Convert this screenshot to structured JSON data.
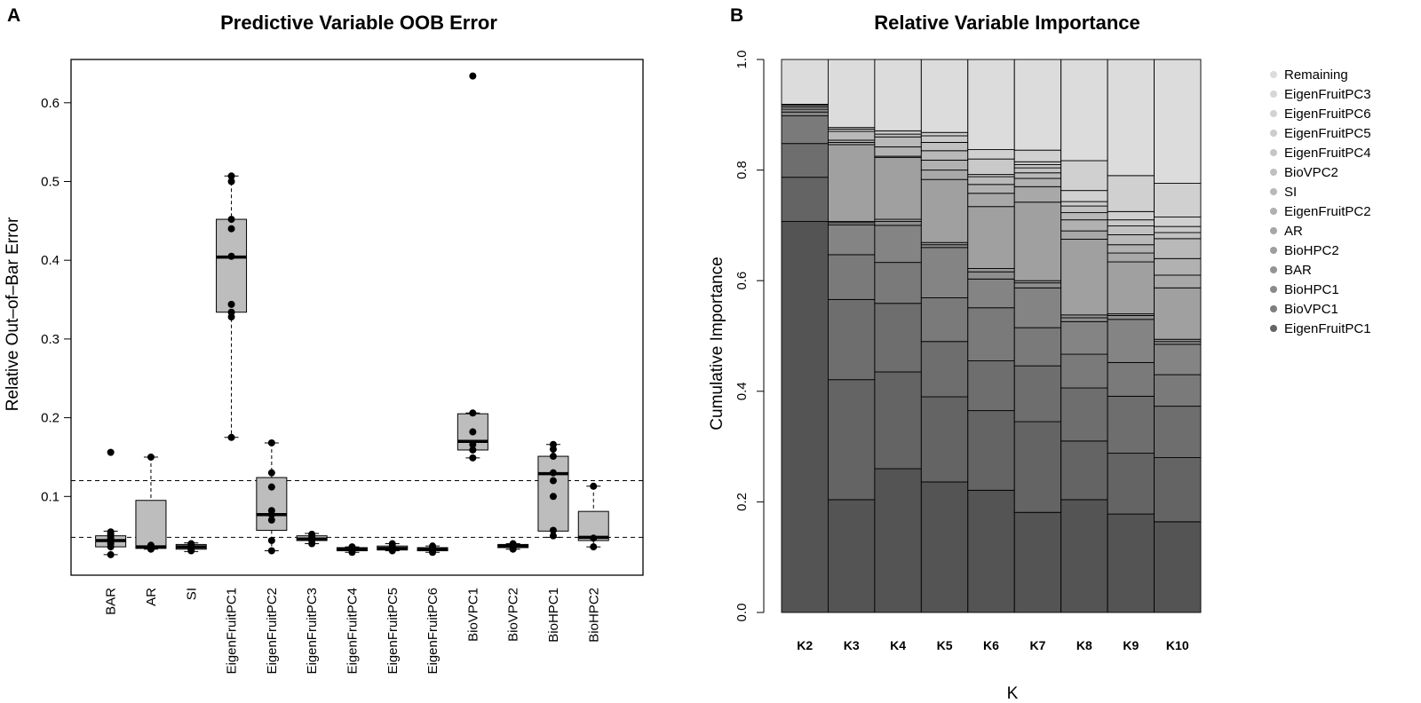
{
  "panel_a_letter": "A",
  "panel_b_letter": "B",
  "chart_data": [
    {
      "type": "box",
      "title": "Predictive Variable OOB Error",
      "ylabel": "Relative Out–of–Bar Error",
      "xlabel": "",
      "ylim": [
        0.0,
        0.655
      ],
      "yticks": [
        "0.1",
        "0.2",
        "0.3",
        "0.4",
        "0.5",
        "0.6"
      ],
      "reference_lines": [
        0.048,
        0.12
      ],
      "categories": [
        "BAR",
        "AR",
        "SI",
        "EigenFruitPC1",
        "EigenFruitPC2",
        "EigenFruitPC3",
        "EigenFruitPC4",
        "EigenFruitPC5",
        "EigenFruitPC6",
        "BioVPC1",
        "BioVPC2",
        "BioHPC1",
        "BioHPC2"
      ],
      "boxes": [
        {
          "whisker_low": 0.026,
          "q1": 0.036,
          "median": 0.044,
          "q3": 0.05,
          "whisker_high": 0.056,
          "points": [
            0.026,
            0.036,
            0.04,
            0.043,
            0.045,
            0.047,
            0.05,
            0.052,
            0.055,
            0.156
          ]
        },
        {
          "whisker_low": 0.033,
          "q1": 0.034,
          "median": 0.036,
          "q3": 0.095,
          "whisker_high": 0.15,
          "points": [
            0.033,
            0.034,
            0.035,
            0.036,
            0.037,
            0.038,
            0.15
          ]
        },
        {
          "whisker_low": 0.03,
          "q1": 0.033,
          "median": 0.036,
          "q3": 0.039,
          "whisker_high": 0.041,
          "points": [
            0.031,
            0.034,
            0.036,
            0.038,
            0.04
          ]
        },
        {
          "whisker_low": 0.175,
          "q1": 0.334,
          "median": 0.404,
          "q3": 0.452,
          "whisker_high": 0.507,
          "points": [
            0.175,
            0.328,
            0.334,
            0.344,
            0.405,
            0.44,
            0.452,
            0.5,
            0.507
          ]
        },
        {
          "whisker_low": 0.031,
          "q1": 0.057,
          "median": 0.077,
          "q3": 0.124,
          "whisker_high": 0.168,
          "points": [
            0.031,
            0.044,
            0.07,
            0.077,
            0.082,
            0.112,
            0.13,
            0.168
          ]
        },
        {
          "whisker_low": 0.04,
          "q1": 0.044,
          "median": 0.046,
          "q3": 0.05,
          "whisker_high": 0.053,
          "points": [
            0.04,
            0.044,
            0.047,
            0.049,
            0.052
          ]
        },
        {
          "whisker_low": 0.029,
          "q1": 0.031,
          "median": 0.033,
          "q3": 0.035,
          "whisker_high": 0.036,
          "points": [
            0.029,
            0.031,
            0.033,
            0.035,
            0.036
          ]
        },
        {
          "whisker_low": 0.031,
          "q1": 0.032,
          "median": 0.034,
          "q3": 0.037,
          "whisker_high": 0.04,
          "points": [
            0.031,
            0.033,
            0.035,
            0.037,
            0.04
          ]
        },
        {
          "whisker_low": 0.029,
          "q1": 0.031,
          "median": 0.033,
          "q3": 0.035,
          "whisker_high": 0.037,
          "points": [
            0.029,
            0.031,
            0.033,
            0.035,
            0.037
          ]
        },
        {
          "whisker_low": 0.149,
          "q1": 0.159,
          "median": 0.17,
          "q3": 0.205,
          "whisker_high": 0.206,
          "points": [
            0.149,
            0.159,
            0.166,
            0.182,
            0.206,
            0.634
          ]
        },
        {
          "whisker_low": 0.033,
          "q1": 0.035,
          "median": 0.037,
          "q3": 0.039,
          "whisker_high": 0.04,
          "points": [
            0.033,
            0.035,
            0.037,
            0.039,
            0.04
          ]
        },
        {
          "whisker_low": 0.048,
          "q1": 0.056,
          "median": 0.129,
          "q3": 0.151,
          "whisker_high": 0.166,
          "points": [
            0.05,
            0.057,
            0.1,
            0.12,
            0.13,
            0.151,
            0.16,
            0.166
          ]
        },
        {
          "whisker_low": 0.036,
          "q1": 0.044,
          "median": 0.048,
          "q3": 0.081,
          "whisker_high": 0.113,
          "points": [
            0.036,
            0.047,
            0.113
          ]
        }
      ]
    },
    {
      "type": "stacked_bar",
      "title": "Relative Variable Importance",
      "ylabel": "Cumulative Importance",
      "xlabel": "K",
      "ylim": [
        0.0,
        1.0
      ],
      "yticks": [
        "0.0",
        "0.2",
        "0.4",
        "0.6",
        "0.8",
        "1.0"
      ],
      "categories": [
        "K2",
        "K3",
        "K4",
        "K5",
        "K6",
        "K7",
        "K8",
        "K9",
        "K10"
      ],
      "legend": [
        "Remaining",
        "EigenFruitPC3",
        "EigenFruitPC6",
        "EigenFruitPC5",
        "EigenFruitPC4",
        "BioVPC2",
        "SI",
        "EigenFruitPC2",
        "AR",
        "BioHPC2",
        "BAR",
        "BioHPC1",
        "BioVPC1",
        "EigenFruitPC1"
      ],
      "legend_colors": [
        "#dcdcdc",
        "#d6d6d6",
        "#d2d2d2",
        "#cccccc",
        "#c6c6c6",
        "#c0c0c0",
        "#b8b8b8",
        "#b0b0b0",
        "#a6a6a6",
        "#9e9e9e",
        "#949494",
        "#8a8a8a",
        "#7e7e7e",
        "#646464"
      ],
      "segment_colors": [
        "#545454",
        "#646464",
        "#6e6e6e",
        "#7a7a7a",
        "#848484",
        "#8e8e8e",
        "#979797",
        "#a0a0a0",
        "#a8a8a8",
        "#b1b1b1",
        "#b9b9b9",
        "#c1c1c1",
        "#c9c9c9",
        "#d0d0d0",
        "#dcdcdc"
      ],
      "cumulative_boundaries": [
        [
          0.707,
          0.787,
          0.848,
          0.898,
          0.905,
          0.91,
          0.914,
          0.917,
          0.919,
          1.0
        ],
        [
          0.204,
          0.421,
          0.566,
          0.647,
          0.701,
          0.705,
          0.707,
          0.846,
          0.85,
          0.854,
          0.87,
          0.874,
          0.877,
          1.0
        ],
        [
          0.26,
          0.435,
          0.559,
          0.633,
          0.7,
          0.707,
          0.711,
          0.823,
          0.825,
          0.842,
          0.86,
          0.865,
          0.871,
          1.0
        ],
        [
          0.236,
          0.39,
          0.49,
          0.569,
          0.66,
          0.665,
          0.669,
          0.783,
          0.8,
          0.818,
          0.835,
          0.85,
          0.862,
          0.868,
          1.0
        ],
        [
          0.221,
          0.365,
          0.455,
          0.551,
          0.603,
          0.616,
          0.622,
          0.734,
          0.758,
          0.774,
          0.788,
          0.792,
          0.82,
          0.837,
          1.0
        ],
        [
          0.181,
          0.345,
          0.446,
          0.515,
          0.587,
          0.596,
          0.6,
          0.742,
          0.77,
          0.785,
          0.795,
          0.804,
          0.81,
          0.815,
          0.836,
          1.0
        ],
        [
          0.204,
          0.31,
          0.406,
          0.467,
          0.526,
          0.533,
          0.538,
          0.675,
          0.69,
          0.71,
          0.723,
          0.735,
          0.743,
          0.763,
          0.817,
          1.0
        ],
        [
          0.178,
          0.288,
          0.391,
          0.452,
          0.53,
          0.537,
          0.54,
          0.634,
          0.65,
          0.665,
          0.683,
          0.699,
          0.71,
          0.725,
          0.79,
          1.0
        ],
        [
          0.164,
          0.28,
          0.373,
          0.43,
          0.485,
          0.49,
          0.494,
          0.587,
          0.61,
          0.64,
          0.676,
          0.687,
          0.698,
          0.715,
          0.776,
          1.0
        ]
      ]
    }
  ]
}
